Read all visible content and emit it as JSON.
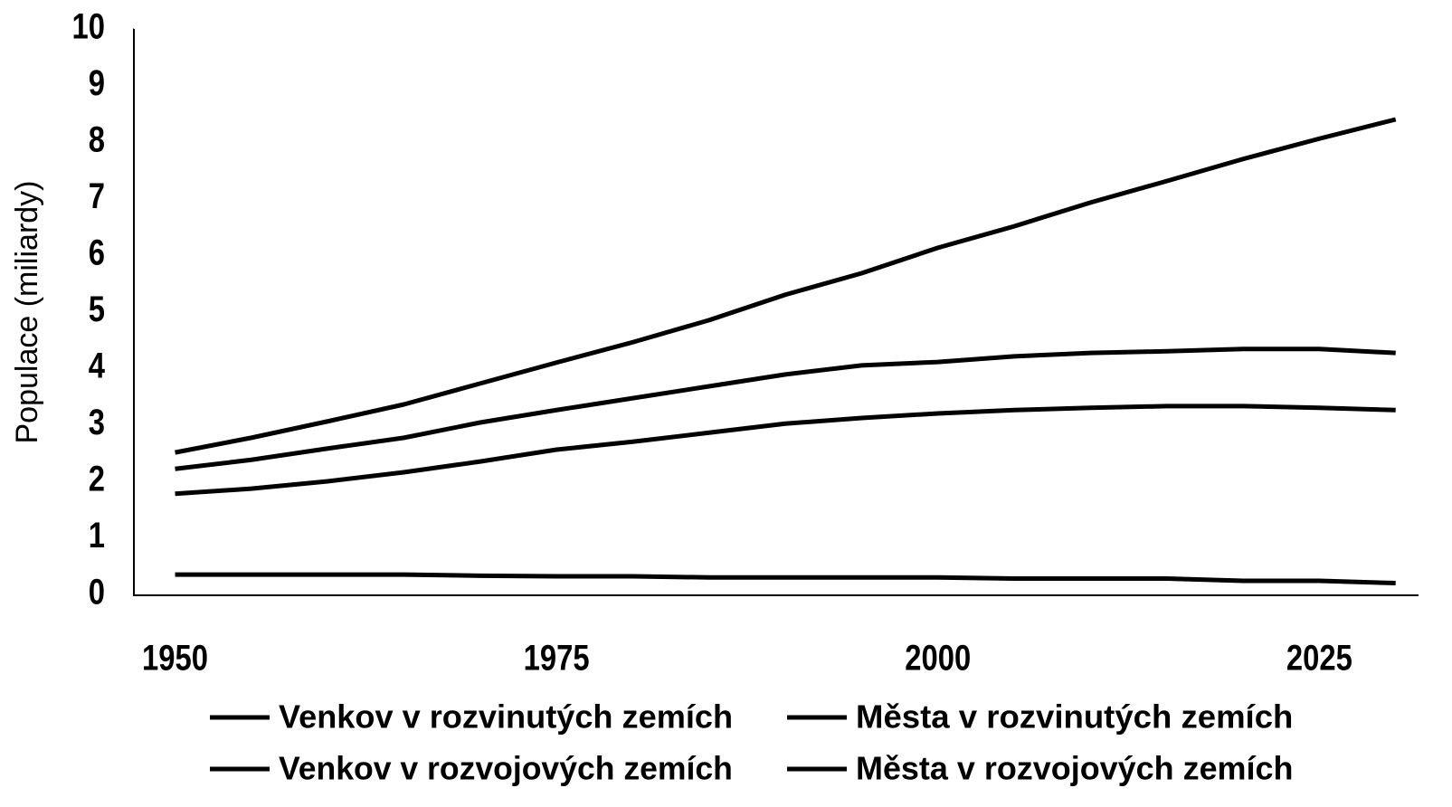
{
  "chart_data": {
    "type": "line",
    "y_label": "Populace (miliardy)",
    "x": [
      1950,
      1955,
      1960,
      1965,
      1970,
      1975,
      1980,
      1985,
      1990,
      1995,
      2000,
      2005,
      2010,
      2015,
      2020,
      2025,
      2030
    ],
    "series": [
      {
        "name": "Venkov v rozvinutých zemích",
        "color": "#000000",
        "values": [
          0.35,
          0.35,
          0.35,
          0.35,
          0.33,
          0.32,
          0.32,
          0.3,
          0.3,
          0.3,
          0.3,
          0.28,
          0.28,
          0.28,
          0.24,
          0.24,
          0.2
        ]
      },
      {
        "name": "Města v rozvinutých zemích",
        "color": "#000000",
        "values": [
          1.78,
          1.87,
          2.0,
          2.16,
          2.35,
          2.56,
          2.7,
          2.86,
          3.02,
          3.12,
          3.2,
          3.26,
          3.3,
          3.33,
          3.33,
          3.3,
          3.26
        ]
      },
      {
        "name": "Venkov v rozvojových zemích",
        "color": "#000000",
        "values": [
          2.22,
          2.38,
          2.58,
          2.77,
          3.04,
          3.26,
          3.47,
          3.68,
          3.89,
          4.05,
          4.11,
          4.21,
          4.27,
          4.3,
          4.34,
          4.34,
          4.27
        ]
      },
      {
        "name": "Města v rozvojových zemích",
        "color": "#000000",
        "values": [
          2.51,
          2.77,
          3.06,
          3.36,
          3.73,
          4.1,
          4.46,
          4.85,
          5.3,
          5.68,
          6.13,
          6.51,
          6.93,
          7.31,
          7.7,
          8.06,
          8.4
        ]
      }
    ],
    "xlim": [
      1947.3,
      2031.5
    ],
    "xticks": [
      1950,
      1975,
      2000,
      2025
    ],
    "ylim": [
      0,
      10
    ],
    "yticks": [
      0,
      1,
      2,
      3,
      4,
      5,
      6,
      7,
      8,
      9,
      10
    ],
    "grid": false,
    "legend": "bottom"
  }
}
